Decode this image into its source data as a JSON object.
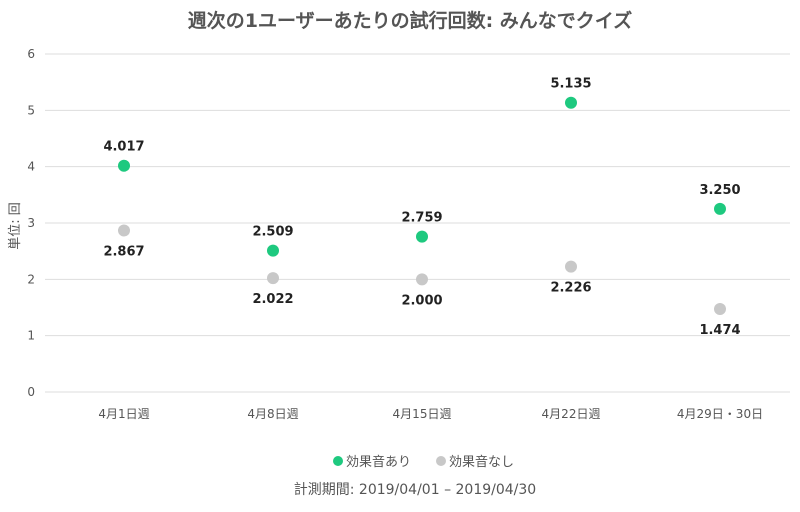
{
  "chart_data": {
    "type": "scatter",
    "title": "週次の1ユーザーあたりの試行回数: みんなでクイズ",
    "xlabel": "",
    "ylabel": "単位: 回",
    "categories": [
      "4月1日週",
      "4月8日週",
      "4月15日週",
      "4月22日週",
      "4月29日・30日"
    ],
    "ylim": [
      0,
      6
    ],
    "yticks": [
      "0",
      "1",
      "2",
      "3",
      "4",
      "5",
      "6"
    ],
    "grid": true,
    "legend_position": "bottom",
    "series": [
      {
        "name": "効果音あり",
        "color": "#1ec97f",
        "values": [
          4.017,
          2.509,
          2.759,
          5.135,
          3.25
        ],
        "labels": [
          "4.017",
          "2.509",
          "2.759",
          "5.135",
          "3.250"
        ],
        "label_position": "above"
      },
      {
        "name": "効果音なし",
        "color": "#c8c8c8",
        "values": [
          2.867,
          2.022,
          2.0,
          2.226,
          1.474
        ],
        "labels": [
          "2.867",
          "2.022",
          "2.000",
          "2.226",
          "1.474"
        ],
        "label_position": "below"
      }
    ],
    "footnote": "計測期間: 2019/04/01 – 2019/04/30"
  }
}
